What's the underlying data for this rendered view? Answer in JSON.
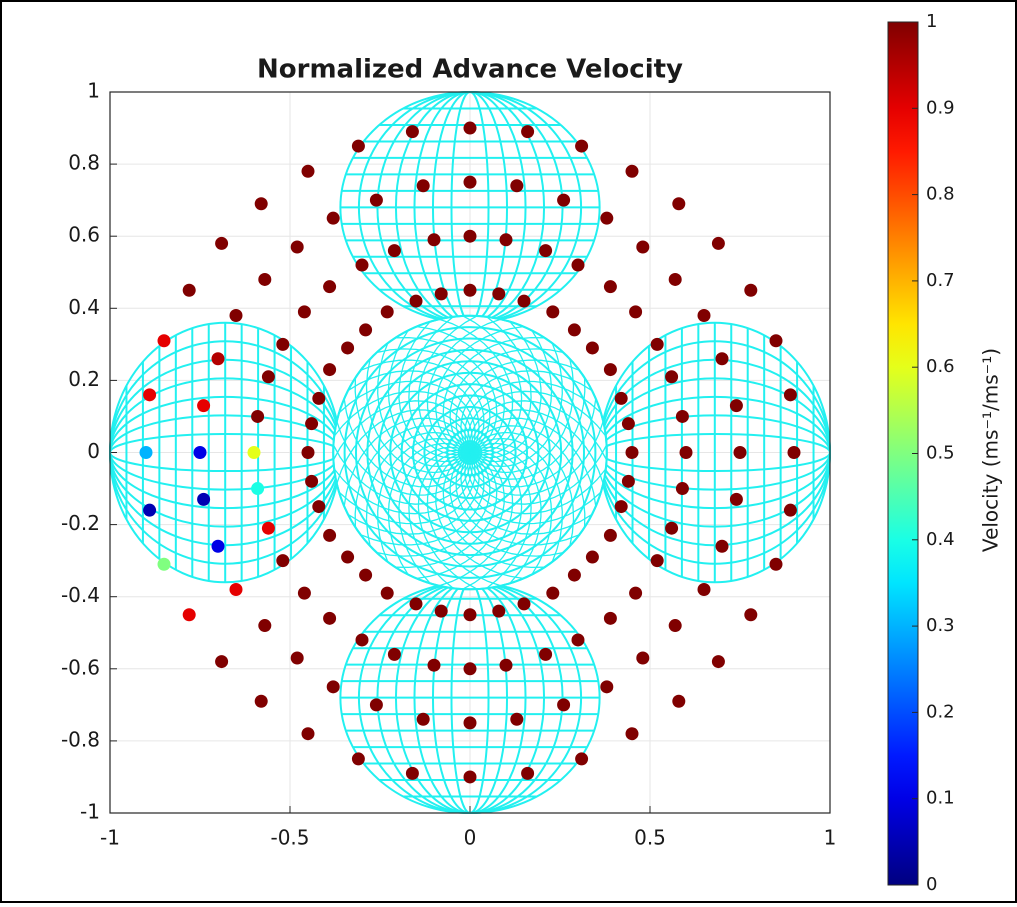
{
  "chart_data": {
    "type": "scatter",
    "title": "Normalized Advance Velocity",
    "colorbar_label": "Velocity (ms⁻¹/ms⁻¹)",
    "xlim": [
      -1,
      1
    ],
    "ylim": [
      -1,
      1
    ],
    "xticks": [
      -1,
      -0.5,
      0,
      0.5,
      1
    ],
    "yticks": [
      -1,
      -0.8,
      -0.6,
      -0.4,
      -0.2,
      0,
      0.2,
      0.4,
      0.6,
      0.8,
      1
    ],
    "clim": [
      0,
      1
    ],
    "cticks": [
      0,
      0.1,
      0.2,
      0.3,
      0.4,
      0.5,
      0.6,
      0.7,
      0.8,
      0.9,
      1
    ],
    "colormap": "jet",
    "grid": true,
    "x": [
      0.45,
      0.6,
      0.75,
      0.9,
      0.44,
      0.59,
      0.74,
      0.89,
      0.42,
      0.56,
      0.7,
      0.85,
      0.39,
      0.52,
      0.65,
      0.78,
      0.34,
      0.46,
      0.57,
      0.69,
      0.29,
      0.39,
      0.48,
      0.58,
      0.23,
      0.3,
      0.38,
      0.45,
      0.15,
      0.21,
      0.26,
      0.31,
      0.08,
      0.1,
      0.13,
      0.16,
      0,
      0,
      0,
      0,
      -0.08,
      -0.1,
      -0.13,
      -0.16,
      -0.15,
      -0.21,
      -0.26,
      -0.31,
      -0.23,
      -0.3,
      -0.38,
      -0.45,
      -0.29,
      -0.39,
      -0.48,
      -0.58,
      -0.34,
      -0.46,
      -0.57,
      -0.69,
      -0.39,
      -0.52,
      -0.65,
      -0.78,
      -0.42,
      -0.56,
      -0.7,
      -0.85,
      -0.44,
      -0.59,
      -0.74,
      -0.89,
      -0.45,
      -0.6,
      -0.75,
      -0.9,
      -0.44,
      -0.59,
      -0.74,
      -0.89,
      -0.42,
      -0.56,
      -0.7,
      -0.85,
      -0.39,
      -0.52,
      -0.65,
      -0.78,
      -0.34,
      -0.46,
      -0.57,
      -0.69,
      -0.29,
      -0.39,
      -0.48,
      -0.58,
      -0.23,
      -0.3,
      -0.38,
      -0.45,
      -0.15,
      -0.21,
      -0.26,
      -0.31,
      -0.08,
      -0.1,
      -0.13,
      -0.16,
      0,
      0,
      0,
      0,
      0.08,
      0.1,
      0.13,
      0.16,
      0.15,
      0.21,
      0.26,
      0.31,
      0.23,
      0.3,
      0.38,
      0.45,
      0.29,
      0.39,
      0.48,
      0.58,
      0.34,
      0.46,
      0.57,
      0.69,
      0.39,
      0.52,
      0.65,
      0.78,
      0.42,
      0.56,
      0.7,
      0.85,
      0.44,
      0.59,
      0.74,
      0.89
    ],
    "y": [
      0,
      0,
      0,
      0,
      0.08,
      0.1,
      0.13,
      0.16,
      0.15,
      0.21,
      0.26,
      0.31,
      0.23,
      0.3,
      0.38,
      0.45,
      0.29,
      0.39,
      0.48,
      0.58,
      0.34,
      0.46,
      0.57,
      0.69,
      0.39,
      0.52,
      0.65,
      0.78,
      0.42,
      0.56,
      0.7,
      0.85,
      0.44,
      0.59,
      0.74,
      0.89,
      0.45,
      0.6,
      0.75,
      0.9,
      0.44,
      0.59,
      0.74,
      0.89,
      0.42,
      0.56,
      0.7,
      0.85,
      0.39,
      0.52,
      0.65,
      0.78,
      0.34,
      0.46,
      0.57,
      0.69,
      0.29,
      0.39,
      0.48,
      0.58,
      0.23,
      0.3,
      0.38,
      0.45,
      0.15,
      0.21,
      0.26,
      0.31,
      0.08,
      0.1,
      0.13,
      0.16,
      0,
      0,
      0,
      0,
      -0.08,
      -0.1,
      -0.13,
      -0.16,
      -0.15,
      -0.21,
      -0.26,
      -0.31,
      -0.23,
      -0.3,
      -0.38,
      -0.45,
      -0.29,
      -0.39,
      -0.48,
      -0.58,
      -0.34,
      -0.46,
      -0.57,
      -0.69,
      -0.39,
      -0.52,
      -0.65,
      -0.78,
      -0.42,
      -0.56,
      -0.7,
      -0.85,
      -0.44,
      -0.59,
      -0.74,
      -0.89,
      -0.45,
      -0.6,
      -0.75,
      -0.9,
      -0.44,
      -0.59,
      -0.74,
      -0.89,
      -0.42,
      -0.56,
      -0.7,
      -0.85,
      -0.39,
      -0.52,
      -0.65,
      -0.78,
      -0.34,
      -0.46,
      -0.57,
      -0.69,
      -0.29,
      -0.39,
      -0.48,
      -0.58,
      -0.23,
      -0.3,
      -0.38,
      -0.45,
      -0.15,
      -0.21,
      -0.26,
      -0.31,
      -0.08,
      -0.1,
      -0.13,
      -0.16
    ],
    "values": [
      1,
      1,
      1,
      1,
      1,
      1,
      1,
      1,
      1,
      1,
      1,
      1,
      1,
      1,
      1,
      1,
      1,
      1,
      1,
      1,
      1,
      1,
      1,
      1,
      1,
      1,
      1,
      1,
      1,
      1,
      1,
      1,
      1,
      1,
      1,
      1,
      1,
      1,
      1,
      1,
      1,
      1,
      1,
      1,
      1,
      1,
      1,
      1,
      1,
      1,
      1,
      1,
      1,
      1,
      1,
      1,
      1,
      1,
      1,
      1,
      1,
      1,
      1,
      1,
      1,
      1,
      0.95,
      0.9,
      1,
      1,
      0.9,
      0.9,
      1,
      0.6,
      0.1,
      0.3,
      1,
      0.4,
      0.05,
      0.05,
      1,
      0.9,
      0.1,
      0.5,
      1,
      1,
      0.9,
      0.9,
      1,
      1,
      1,
      1,
      1,
      1,
      1,
      1,
      1,
      1,
      1,
      1,
      1,
      1,
      1,
      1,
      1,
      1,
      1,
      1,
      1,
      1,
      1,
      1,
      1,
      1,
      1,
      1,
      1,
      1,
      1,
      1,
      1,
      1,
      1,
      1,
      1,
      1,
      1,
      1,
      1,
      1,
      1,
      1,
      1,
      1,
      1,
      1,
      1,
      1,
      1,
      1,
      1,
      1,
      1,
      1
    ]
  }
}
